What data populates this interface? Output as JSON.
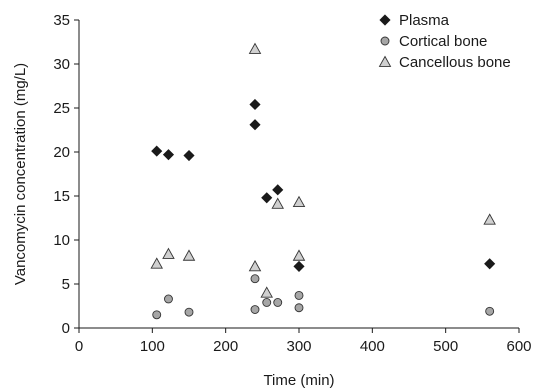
{
  "chart_data": {
    "type": "scatter",
    "xlabel": "Time (min)",
    "ylabel": "Vancomycin concentration (mg/L)",
    "xlim": [
      0,
      600
    ],
    "ylim": [
      0,
      35
    ],
    "xticks": [
      "0",
      "100",
      "200",
      "300",
      "400",
      "500",
      "600"
    ],
    "yticks": [
      "0",
      "5",
      "10",
      "15",
      "20",
      "25",
      "30",
      "35"
    ],
    "grid": false,
    "legend_position": "top-right",
    "series": [
      {
        "name": "Plasma",
        "marker": "diamond",
        "color": "#1a1a1a",
        "points": [
          {
            "x": 106,
            "y": 20.1
          },
          {
            "x": 122,
            "y": 19.7
          },
          {
            "x": 150,
            "y": 19.6
          },
          {
            "x": 240,
            "y": 25.4
          },
          {
            "x": 240,
            "y": 23.1
          },
          {
            "x": 256,
            "y": 14.8
          },
          {
            "x": 271,
            "y": 15.7
          },
          {
            "x": 300,
            "y": 7.0
          },
          {
            "x": 560,
            "y": 7.3
          }
        ]
      },
      {
        "name": "Cortical bone",
        "marker": "circle",
        "color": "#a6a6a6",
        "points": [
          {
            "x": 106,
            "y": 1.5
          },
          {
            "x": 122,
            "y": 3.3
          },
          {
            "x": 150,
            "y": 1.8
          },
          {
            "x": 240,
            "y": 5.6
          },
          {
            "x": 240,
            "y": 2.1
          },
          {
            "x": 256,
            "y": 2.9
          },
          {
            "x": 271,
            "y": 2.9
          },
          {
            "x": 300,
            "y": 3.7
          },
          {
            "x": 300,
            "y": 2.3
          },
          {
            "x": 560,
            "y": 1.9
          }
        ]
      },
      {
        "name": "Cancellous bone",
        "marker": "triangle",
        "color": "#d0d0d0",
        "points": [
          {
            "x": 106,
            "y": 7.3
          },
          {
            "x": 122,
            "y": 8.4
          },
          {
            "x": 150,
            "y": 8.2
          },
          {
            "x": 240,
            "y": 31.7
          },
          {
            "x": 240,
            "y": 7.0
          },
          {
            "x": 256,
            "y": 4.0
          },
          {
            "x": 271,
            "y": 14.1
          },
          {
            "x": 300,
            "y": 14.3
          },
          {
            "x": 300,
            "y": 8.2
          },
          {
            "x": 560,
            "y": 12.3
          }
        ]
      }
    ]
  }
}
